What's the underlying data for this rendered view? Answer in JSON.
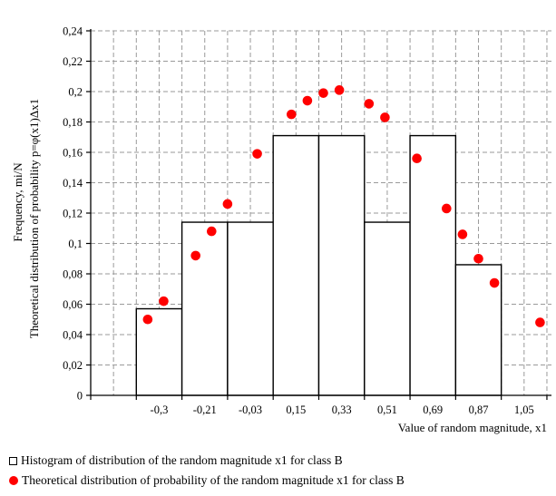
{
  "chart_data": {
    "type": "bar",
    "categories": [
      "-0,3",
      "-0,21",
      "-0,03",
      "0,15",
      "0,33",
      "0,51",
      "0,69",
      "0,87",
      "1,05"
    ],
    "series": [
      {
        "name": "Histogram of distribution of the random magnitude x1 for class B",
        "kind": "histogram",
        "x_range": [
          -0.39,
          0.96
        ],
        "edges": [
          -0.39,
          -0.29,
          -0.19,
          -0.09,
          0.01,
          0.11,
          0.21,
          0.31,
          0.41,
          0.51,
          0.61,
          0.71,
          0.81,
          0.91,
          0.96
        ],
        "bins": [
          {
            "from": 1,
            "to": 2,
            "value": 0.057
          },
          {
            "from": 2,
            "to": 3,
            "value": 0.114
          },
          {
            "from": 3,
            "to": 4,
            "value": 0.114
          },
          {
            "from": 4,
            "to": 5,
            "value": 0.171
          },
          {
            "from": 5,
            "to": 6,
            "value": 0.171
          },
          {
            "from": 6,
            "to": 7,
            "value": 0.114
          },
          {
            "from": 7,
            "to": 8,
            "value": 0.171
          },
          {
            "from": 8,
            "to": 9,
            "value": 0.086
          }
        ],
        "color": "#ffffff"
      },
      {
        "name": "Theoretical distribution of probability of the random magnitude x1 for class B",
        "kind": "points",
        "points": [
          {
            "x": 1.25,
            "y": 0.05
          },
          {
            "x": 1.6,
            "y": 0.062
          },
          {
            "x": 2.3,
            "y": 0.092
          },
          {
            "x": 2.65,
            "y": 0.108
          },
          {
            "x": 3.0,
            "y": 0.126
          },
          {
            "x": 3.65,
            "y": 0.159
          },
          {
            "x": 4.4,
            "y": 0.185
          },
          {
            "x": 4.75,
            "y": 0.194
          },
          {
            "x": 5.1,
            "y": 0.199
          },
          {
            "x": 5.45,
            "y": 0.201
          },
          {
            "x": 6.1,
            "y": 0.192
          },
          {
            "x": 6.45,
            "y": 0.183
          },
          {
            "x": 7.15,
            "y": 0.156
          },
          {
            "x": 7.8,
            "y": 0.123
          },
          {
            "x": 8.15,
            "y": 0.106
          },
          {
            "x": 8.5,
            "y": 0.09
          },
          {
            "x": 8.85,
            "y": 0.074
          },
          {
            "x": 9.85,
            "y": 0.048
          }
        ],
        "color": "#ff0000"
      }
    ],
    "x_axis": {
      "label": "Value of random magnitude,  x1",
      "tick_labels": [
        "-0,3",
        "-0,21",
        "-0,03",
        "0,15",
        "0,33",
        "0,51",
        "0,69",
        "0,87",
        "1,05"
      ]
    },
    "y_axis": {
      "label_line1": "Frequency, mi/N",
      "label_line2": "Theoretical  distribution  of probability  p=φ(x1)Δx1",
      "ylim": [
        0,
        0.24
      ],
      "tick_values": [
        0,
        0.02,
        0.04,
        0.06,
        0.08,
        0.1,
        0.12,
        0.14,
        0.16,
        0.18,
        0.2,
        0.22,
        0.24
      ],
      "tick_labels": [
        "0",
        "0,02",
        "0,04",
        "0,06",
        "0,08",
        "0,1",
        "0,12",
        "0,14",
        "0,16",
        "0,18",
        "0,2",
        "0,22",
        "0,24"
      ]
    },
    "grid": true,
    "legend_position": "bottom"
  },
  "legend": {
    "histogram_label": "Histogram of distribution of the random magnitude x1 for class B",
    "theory_label": "Theoretical distribution of probability of the random magnitude x1 for class B"
  }
}
